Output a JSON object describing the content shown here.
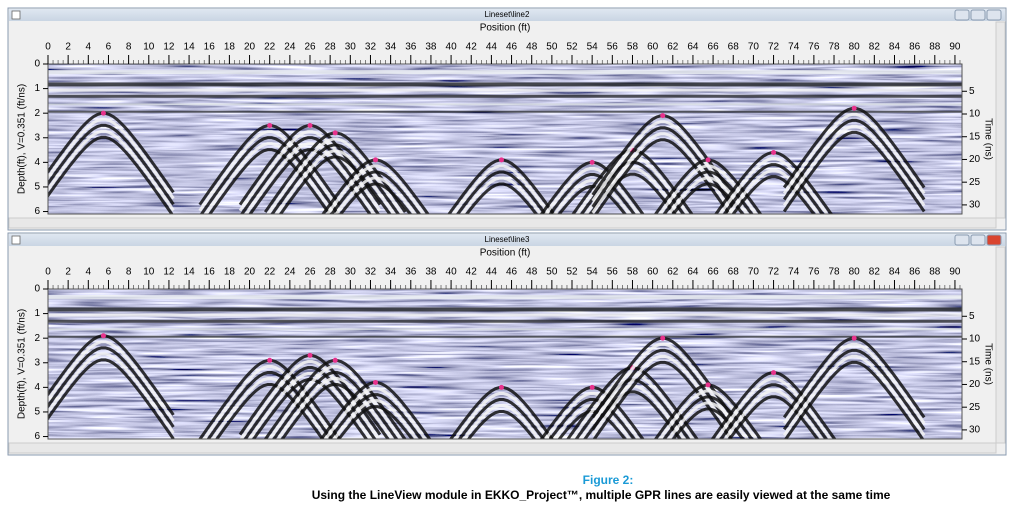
{
  "windows": [
    {
      "title": "Lineset\\line2",
      "x_label": "Position (ft)",
      "y_label": "Depth(ft), V=0.351 (ft/ns)",
      "y2_label": "Time (ns)",
      "xlim": [
        0,
        90.7
      ],
      "xticks": [
        0,
        2,
        4,
        6,
        8,
        10,
        12,
        14,
        16,
        18,
        20,
        22,
        24,
        26,
        28,
        30,
        32,
        34,
        36,
        38,
        40,
        42,
        44,
        46,
        48,
        50,
        52,
        54,
        56,
        58,
        60,
        62,
        64,
        66,
        68,
        70,
        72,
        74,
        76,
        78,
        80,
        82,
        84,
        86,
        88,
        90
      ],
      "ylim": [
        0,
        6.1
      ],
      "yticks": [
        0,
        1,
        2,
        3,
        4,
        5,
        6
      ],
      "y2lim": [
        -1,
        32
      ],
      "y2ticks": [
        5,
        10,
        15,
        20,
        25,
        30
      ],
      "picks": {
        "x": [
          5.5,
          22,
          26,
          28.5,
          32.5,
          45,
          54,
          58,
          61,
          65.5,
          72,
          80
        ],
        "depth": [
          2.0,
          2.5,
          2.5,
          2.8,
          3.9,
          3.9,
          4.0,
          3.5,
          2.1,
          3.9,
          3.6,
          1.8
        ]
      }
    },
    {
      "title": "Lineset\\line3",
      "x_label": "Position (ft)",
      "y_label": "Depth(ft), V=0.351 (ft/ns)",
      "y2_label": "Time (ns)",
      "xlim": [
        0,
        90.7
      ],
      "xticks": [
        0,
        2,
        4,
        6,
        8,
        10,
        12,
        14,
        16,
        18,
        20,
        22,
        24,
        26,
        28,
        30,
        32,
        34,
        36,
        38,
        40,
        42,
        44,
        46,
        48,
        50,
        52,
        54,
        56,
        58,
        60,
        62,
        64,
        66,
        68,
        70,
        72,
        74,
        76,
        78,
        80,
        82,
        84,
        86,
        88,
        90
      ],
      "ylim": [
        0,
        6.1
      ],
      "yticks": [
        0,
        1,
        2,
        3,
        4,
        5,
        6
      ],
      "y2lim": [
        -1,
        32
      ],
      "y2ticks": [
        5,
        10,
        15,
        20,
        25,
        30
      ],
      "picks": {
        "x": [
          5.5,
          22,
          26,
          28.5,
          32.5,
          45,
          54,
          58,
          61,
          65.5,
          72,
          80
        ],
        "depth": [
          1.9,
          2.9,
          2.7,
          2.9,
          3.8,
          4.0,
          4.0,
          3.2,
          2.0,
          3.9,
          3.4,
          2.0
        ]
      }
    }
  ],
  "caption": {
    "figure": "Figure 2:",
    "text": "Using the LineView module in EKKO_Project™, multiple GPR lines are easily viewed at the same time"
  }
}
